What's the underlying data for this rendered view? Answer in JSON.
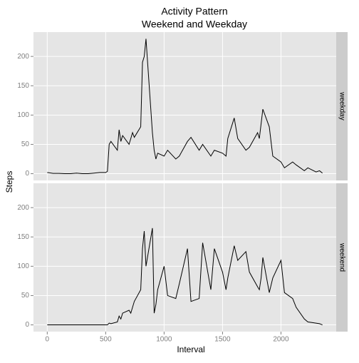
{
  "chart_data": {
    "type": "line",
    "title": "Activity Pattern",
    "subtitle": "Weekend and Weekday",
    "xlabel": "Interval",
    "ylabel": "Steps",
    "x": [
      0,
      50,
      100,
      150,
      200,
      250,
      300,
      350,
      400,
      450,
      500,
      515,
      530,
      545,
      600,
      615,
      630,
      645,
      700,
      715,
      730,
      745,
      800,
      815,
      830,
      845,
      900,
      915,
      930,
      945,
      1000,
      1030,
      1100,
      1130,
      1200,
      1230,
      1300,
      1330,
      1400,
      1430,
      1500,
      1530,
      1545,
      1600,
      1630,
      1700,
      1730,
      1800,
      1815,
      1830,
      1845,
      1900,
      1930,
      2000,
      2030,
      2100,
      2130,
      2200,
      2230,
      2300,
      2330,
      2355
    ],
    "series": [
      {
        "name": "weekday",
        "color": "#000000",
        "values": [
          2,
          0.5,
          0.5,
          0,
          0,
          1,
          0,
          0,
          1,
          2,
          2,
          4,
          50,
          55,
          40,
          75,
          55,
          65,
          50,
          60,
          70,
          62,
          80,
          190,
          200,
          230,
          70,
          40,
          25,
          35,
          30,
          40,
          25,
          30,
          55,
          62,
          40,
          50,
          30,
          40,
          35,
          30,
          60,
          95,
          60,
          40,
          45,
          70,
          60,
          85,
          110,
          80,
          30,
          20,
          10,
          20,
          15,
          5,
          10,
          3,
          5,
          1
        ]
      },
      {
        "name": "weekend",
        "color": "#000000",
        "values": [
          0,
          0,
          0,
          0,
          0,
          0,
          0,
          0,
          0,
          0,
          0,
          0,
          3,
          2,
          5,
          15,
          10,
          20,
          25,
          20,
          30,
          40,
          60,
          130,
          160,
          100,
          165,
          20,
          35,
          60,
          100,
          50,
          45,
          70,
          130,
          40,
          45,
          140,
          60,
          130,
          90,
          60,
          80,
          135,
          110,
          125,
          90,
          65,
          60,
          80,
          115,
          55,
          80,
          110,
          55,
          45,
          30,
          10,
          5,
          3,
          2,
          0
        ]
      }
    ],
    "xlim": [
      -117.75,
      2472.75
    ],
    "xticks": [
      0,
      500,
      1000,
      1500,
      2000
    ],
    "ylim": [
      -11.5,
      241.5
    ],
    "yticks": [
      0,
      50,
      100,
      150,
      200
    ],
    "grid": true
  }
}
